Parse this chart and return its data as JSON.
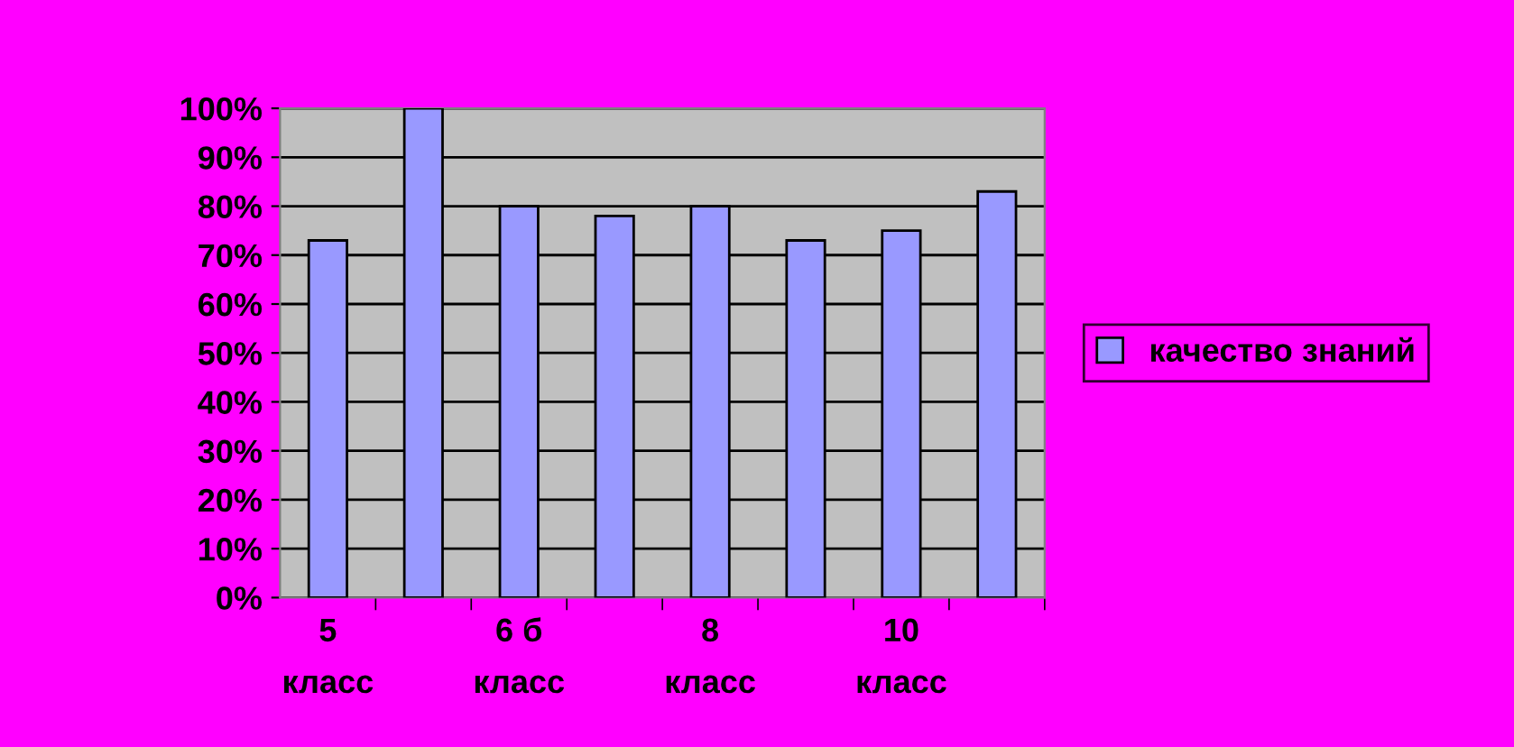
{
  "chart_data": {
    "type": "bar",
    "categories": [
      "5 класс",
      null,
      "6 б класс",
      null,
      "8 класс",
      null,
      "10 класс",
      null
    ],
    "series": [
      {
        "name": "качество знаний",
        "color": "#9999ff",
        "values": [
          73,
          100,
          80,
          78,
          80,
          73,
          75,
          83
        ]
      }
    ],
    "ylim": [
      0,
      100
    ],
    "yticks": [
      {
        "value": 0,
        "label": "0%"
      },
      {
        "value": 10,
        "label": "10%"
      },
      {
        "value": 20,
        "label": "20%"
      },
      {
        "value": 30,
        "label": "30%"
      },
      {
        "value": 40,
        "label": "40%"
      },
      {
        "value": 50,
        "label": "50%"
      },
      {
        "value": 60,
        "label": "60%"
      },
      {
        "value": 70,
        "label": "70%"
      },
      {
        "value": 80,
        "label": "80%"
      },
      {
        "value": 90,
        "label": "90%"
      },
      {
        "value": 100,
        "label": "100%"
      }
    ],
    "grid": "y",
    "legend": "right"
  }
}
